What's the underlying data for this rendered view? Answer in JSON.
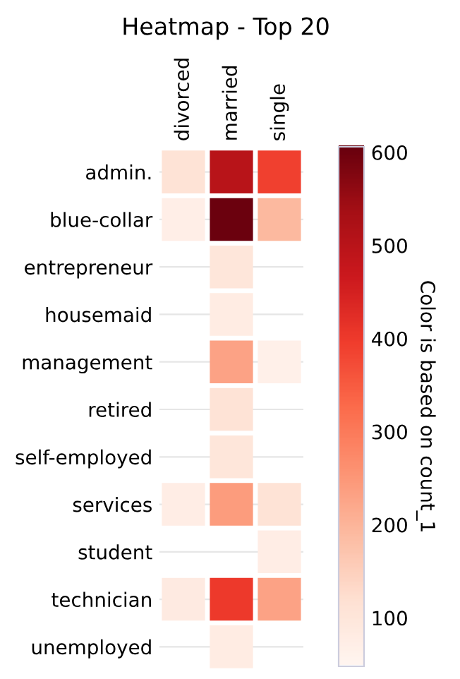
{
  "chart_data": {
    "type": "heatmap",
    "title": "Heatmap - Top 20",
    "categories": [
      "divorced",
      "married",
      "single"
    ],
    "y_categories": [
      "admin.",
      "blue-collar",
      "entrepreneur",
      "housemaid",
      "management",
      "retired",
      "self-employed",
      "services",
      "student",
      "technician",
      "unemployed"
    ],
    "cells": [
      [
        110,
        500,
        390
      ],
      [
        70,
        600,
        190
      ],
      [
        null,
        100,
        null
      ],
      [
        null,
        80,
        null
      ],
      [
        null,
        230,
        65
      ],
      [
        null,
        110,
        null
      ],
      [
        null,
        100,
        null
      ],
      [
        75,
        240,
        110
      ],
      [
        null,
        null,
        75
      ],
      [
        85,
        400,
        230
      ],
      [
        null,
        80,
        null
      ]
    ],
    "clabel": "Color is based on count_1",
    "clim": [
      48,
      606
    ],
    "cticks": [
      100,
      200,
      300,
      400,
      500,
      600
    ],
    "grid": "y"
  }
}
